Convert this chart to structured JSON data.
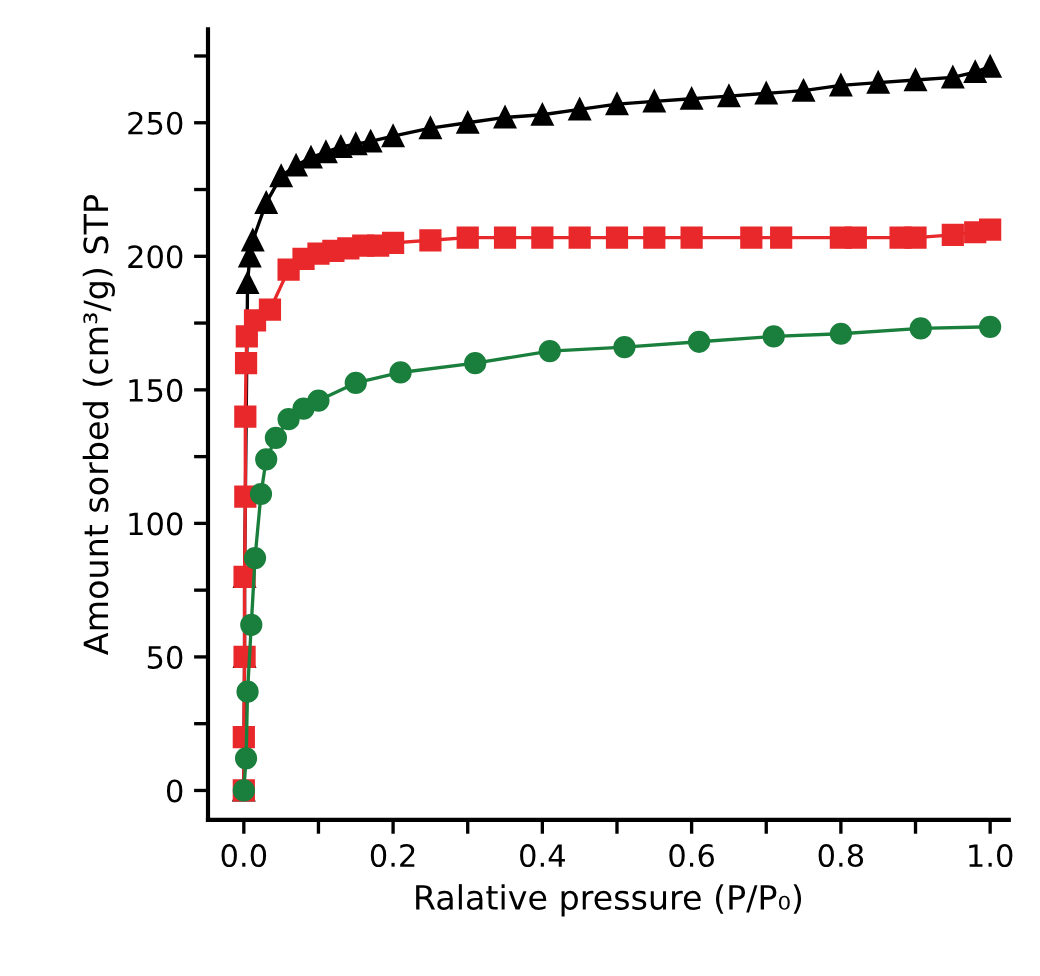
{
  "chart_data": {
    "type": "line",
    "xlabel": "Ralative pressure (P/P₀)",
    "ylabel": "Amount sorbed (cm³/g) STP",
    "xlim": [
      -0.048,
      1.025
    ],
    "ylim": [
      -11,
      285
    ],
    "xticks": [
      {
        "value": 0,
        "label": "0.0"
      },
      {
        "value": 0.1,
        "label": null
      },
      {
        "value": 0.2,
        "label": "0.2"
      },
      {
        "value": 0.3,
        "label": null
      },
      {
        "value": 0.4,
        "label": "0.4"
      },
      {
        "value": 0.5,
        "label": null
      },
      {
        "value": 0.6,
        "label": "0.6"
      },
      {
        "value": 0.7,
        "label": null
      },
      {
        "value": 0.8,
        "label": "0.8"
      },
      {
        "value": 0.9,
        "label": null
      },
      {
        "value": 1.0,
        "label": "1.0"
      }
    ],
    "yticks": [
      0,
      {
        "value": 25,
        "label": null
      },
      50,
      {
        "value": 75,
        "label": null
      },
      100,
      {
        "value": 125,
        "label": null
      },
      150,
      {
        "value": 175,
        "label": null
      },
      200,
      {
        "value": 225,
        "label": null
      },
      250,
      {
        "value": 275,
        "label": null
      }
    ],
    "grid": false,
    "legend": false,
    "line_style": "solid",
    "series": [
      {
        "color": "#000000",
        "marker": "triangle",
        "x": [
          0,
          0.001,
          0.001,
          0.005,
          0.008,
          0.012,
          0.03,
          0.05,
          0.07,
          0.09,
          0.11,
          0.13,
          0.15,
          0.17,
          0.2,
          0.25,
          0.3,
          0.35,
          0.4,
          0.45,
          0.5,
          0.55,
          0.6,
          0.65,
          0.7,
          0.75,
          0.8,
          0.85,
          0.9,
          0.95,
          0.98,
          1.0
        ],
        "values": [
          0,
          50,
          80,
          190,
          200,
          206,
          220,
          230,
          234,
          237,
          239,
          241,
          242,
          243,
          245,
          248,
          250,
          252,
          253,
          255,
          257,
          258,
          259,
          260,
          261,
          262,
          264,
          265,
          266,
          267,
          269,
          271
        ]
      },
      {
        "color": "#e8282a",
        "marker": "square",
        "x": [
          0,
          0,
          0.001,
          0.001,
          0.002,
          0.002,
          0.003,
          0.004,
          0.015,
          0.035,
          0.06,
          0.08,
          0.1,
          0.12,
          0.14,
          0.16,
          0.18,
          0.2,
          0.25,
          0.3,
          0.35,
          0.4,
          0.45,
          0.5,
          0.55,
          0.6,
          0.68,
          0.72,
          0.8,
          0.82,
          0.88,
          0.9,
          0.95,
          0.98,
          1.0
        ],
        "values": [
          0,
          20,
          50,
          80,
          110,
          140,
          160,
          170,
          176,
          180,
          195,
          199,
          201,
          202,
          203,
          204,
          204,
          205,
          206,
          207,
          207,
          207,
          207,
          207,
          207,
          207,
          207,
          207,
          207,
          207,
          207,
          207,
          208,
          209,
          210
        ]
      },
      {
        "color": "#1a7f3c",
        "marker": "circle",
        "x": [
          0,
          0.003,
          0.005,
          0.01,
          0.015,
          0.023,
          0.03,
          0.043,
          0.06,
          0.08,
          0.1,
          0.15,
          0.21,
          0.31,
          0.41,
          0.51,
          0.61,
          0.71,
          0.8,
          0.907,
          1.0
        ],
        "values": [
          0,
          12,
          37,
          62,
          87,
          111,
          124,
          132,
          139,
          143,
          146,
          152.6,
          156.5,
          160,
          164.5,
          166,
          168,
          170,
          171,
          173,
          173.6
        ]
      }
    ]
  }
}
